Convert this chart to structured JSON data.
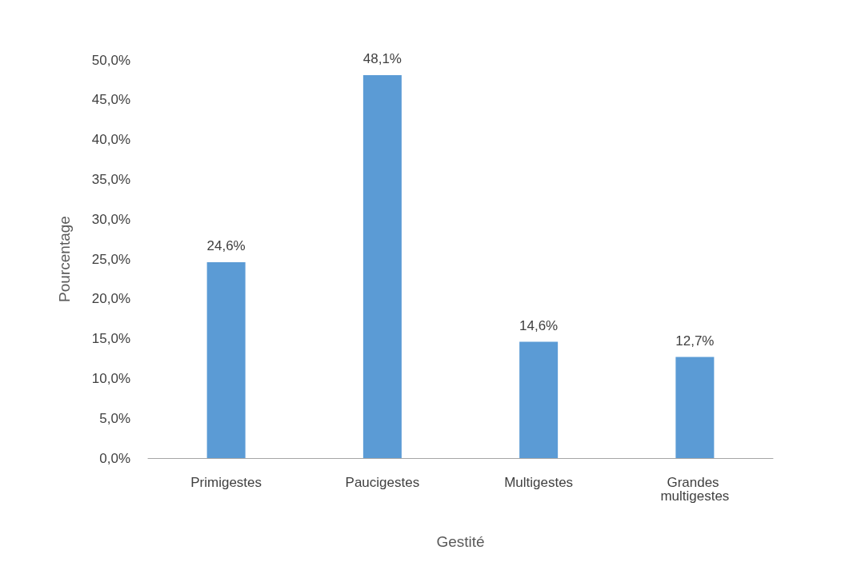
{
  "chart_data": {
    "type": "bar",
    "categories": [
      "Primigestes",
      "Paucigestes",
      "Multigestes",
      "Grandes multigestes"
    ],
    "values": [
      24.6,
      48.1,
      14.6,
      12.7
    ],
    "value_labels": [
      "24,6%",
      "48,1%",
      "14,6%",
      "12,7%"
    ],
    "color": "#5b9bd5",
    "xlabel": "Gestité",
    "ylabel": "Pourcentage",
    "ylim": [
      0,
      50
    ],
    "yticks": [
      {
        "value": 0,
        "label": "0,0%"
      },
      {
        "value": 5,
        "label": "5,0%"
      },
      {
        "value": 10,
        "label": "10,0%"
      },
      {
        "value": 15,
        "label": "15,0%"
      },
      {
        "value": 20,
        "label": "20,0%"
      },
      {
        "value": 25,
        "label": "25,0%"
      },
      {
        "value": 30,
        "label": "30,0%"
      },
      {
        "value": 35,
        "label": "35,0%"
      },
      {
        "value": 40,
        "label": "40,0%"
      },
      {
        "value": 45,
        "label": "45,0%"
      },
      {
        "value": 50,
        "label": "50,0%"
      }
    ],
    "grid": false
  }
}
